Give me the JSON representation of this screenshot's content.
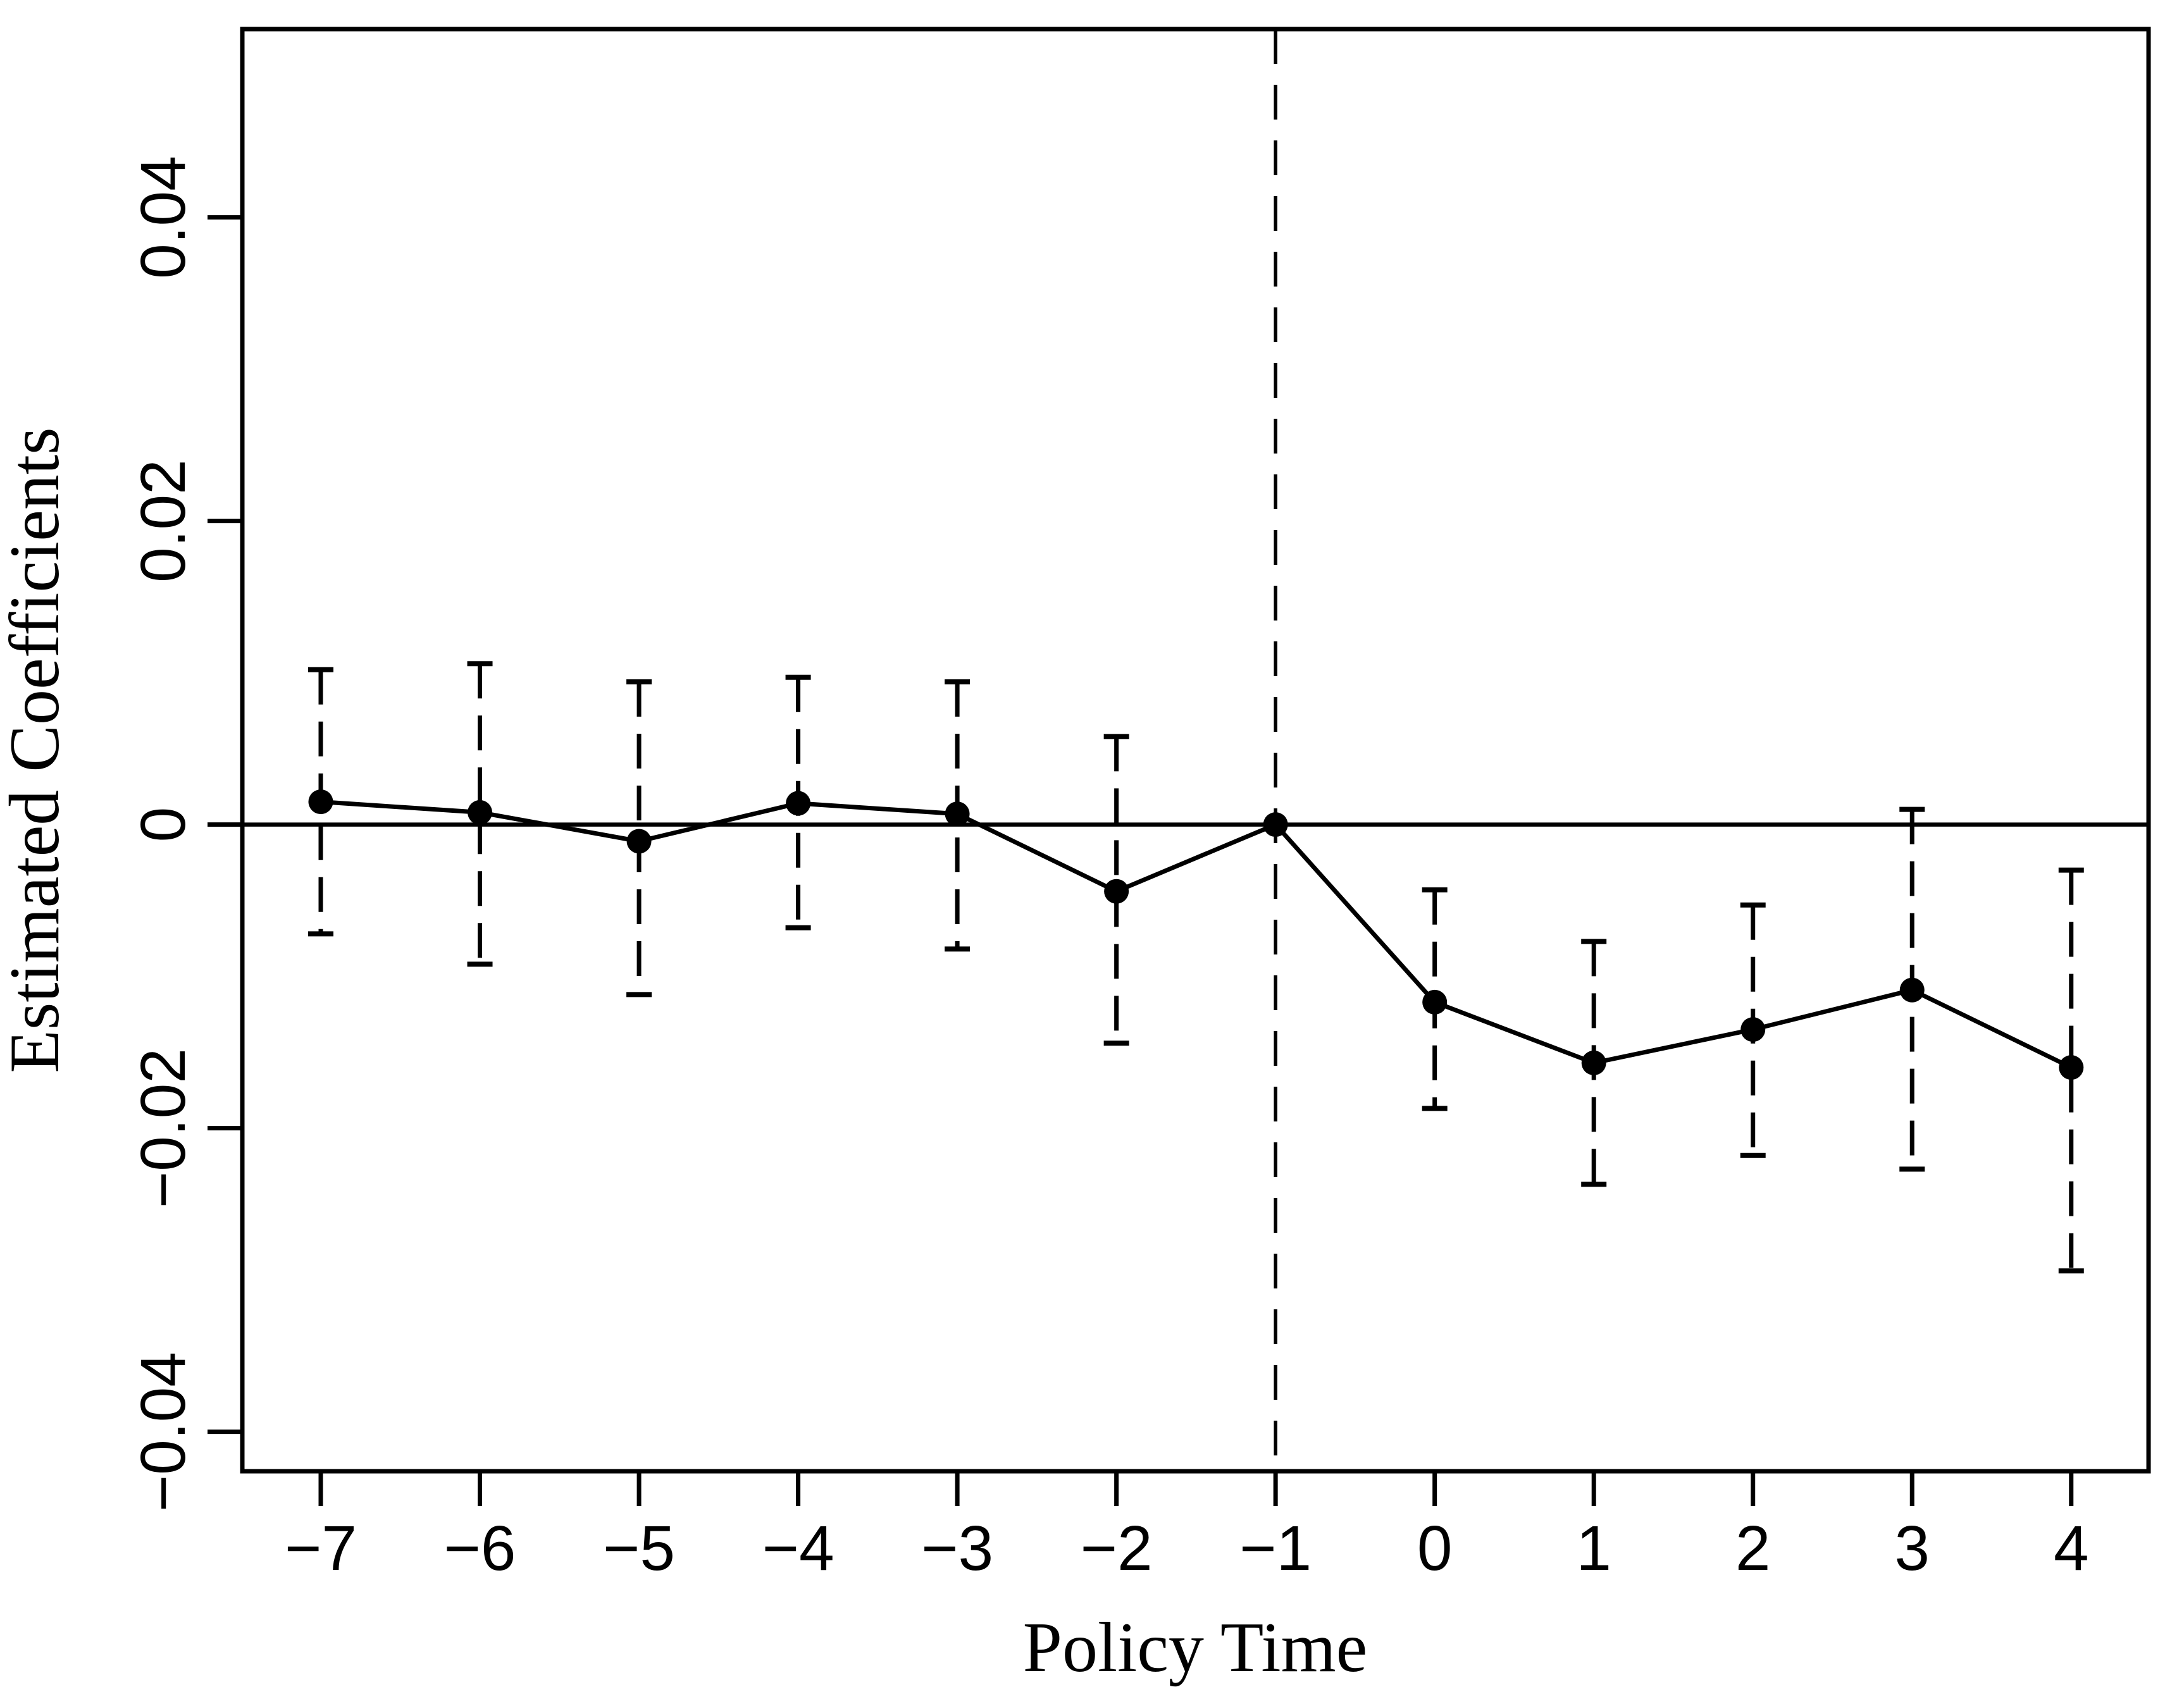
{
  "figure": {
    "background_color": "#ffffff",
    "ink_color": "#000000"
  },
  "chart_data": {
    "type": "line",
    "title": "",
    "xlabel": "Policy Time",
    "ylabel": "Estimated Coefficients",
    "grid": false,
    "legend": false,
    "frame_box": true,
    "zero_line": true,
    "reference_x": -1,
    "xlim": [
      -7.493,
      4.486
    ],
    "ylim": [
      -0.0426,
      0.0524
    ],
    "x_ticks": [
      -7,
      -6,
      -5,
      -4,
      -3,
      -2,
      -1,
      0,
      1,
      2,
      3,
      4
    ],
    "x_tick_labels": [
      "−7",
      "−6",
      "−5",
      "−4",
      "−3",
      "−2",
      "−1",
      "0",
      "1",
      "2",
      "3",
      "4"
    ],
    "y_ticks": [
      -0.04,
      -0.02,
      0,
      0.02,
      0.04
    ],
    "y_tick_labels": [
      "−0.04",
      "−0.02",
      "0",
      "0.02",
      "0.04"
    ],
    "x": [
      -7,
      -6,
      -5,
      -4,
      -3,
      -2,
      -1,
      0,
      1,
      2,
      3,
      4
    ],
    "series": [
      {
        "name": "Estimated Coefficients",
        "values": [
          0.0015,
          0.0008,
          -0.0011,
          0.0014,
          0.0007,
          -0.0044,
          0.0,
          -0.0117,
          -0.0157,
          -0.0135,
          -0.0109,
          -0.016
        ]
      }
    ],
    "ci_high": [
      0.0102,
      0.0106,
      0.0094,
      0.0097,
      0.0094,
      0.0058,
      null,
      -0.0043,
      -0.0077,
      -0.0053,
      0.001,
      -0.003
    ],
    "ci_low": [
      -0.0072,
      -0.0092,
      -0.0112,
      -0.0068,
      -0.0082,
      -0.0144,
      null,
      -0.0187,
      -0.0237,
      -0.0218,
      -0.0227,
      -0.0294
    ]
  }
}
